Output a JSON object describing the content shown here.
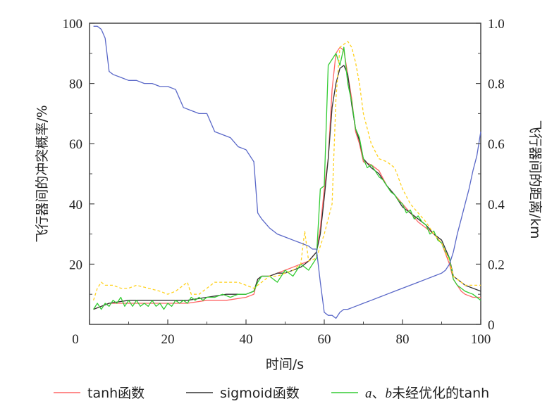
{
  "chart_data": {
    "type": "line",
    "x_ticks": [
      "0",
      "20",
      "40",
      "60",
      "80",
      "100"
    ],
    "y_left_ticks": [
      "20",
      "40",
      "60",
      "80",
      "100"
    ],
    "y_right_ticks": [
      "0",
      "0.2",
      "0.4",
      "0.6",
      "0.8",
      "1.0"
    ],
    "xlabel": "时间/s",
    "ylabel_left": "飞行器间的冲突概率/%",
    "ylabel_right": "飞行器间的距离/km",
    "xlim": [
      0,
      100
    ],
    "ylim_left": [
      0,
      100
    ],
    "ylim_right": [
      0,
      1.0
    ],
    "grid": false,
    "legend_position": "bottom",
    "legend": {
      "tanh_label": "tanh函数",
      "sigmoid_label": "sigmoid函数",
      "ab_italic_a": "a",
      "ab_sep": "、",
      "ab_italic_b": "b",
      "ab_rest": "未经优化的tanh"
    },
    "series": [
      {
        "name": "tanh函数",
        "axis": "left",
        "color": "#ff6666",
        "dash": false,
        "x": [
          1,
          3,
          5,
          10,
          15,
          20,
          25,
          30,
          35,
          40,
          42,
          43,
          44,
          46,
          48,
          50,
          52,
          54,
          56,
          58,
          59,
          60,
          61,
          62,
          63,
          64,
          65,
          66,
          67,
          68,
          69,
          70,
          72,
          74,
          76,
          78,
          80,
          82,
          84,
          86,
          88,
          90,
          92,
          93,
          94,
          95,
          96,
          98,
          100
        ],
        "y": [
          5,
          6,
          7,
          7,
          7,
          7,
          7,
          8,
          8,
          9,
          10,
          15,
          16,
          16,
          17,
          18,
          19,
          20,
          21,
          24,
          32,
          45,
          55,
          78,
          90,
          92,
          91,
          83,
          75,
          64,
          60,
          54,
          53,
          51,
          46,
          43,
          40,
          37,
          34,
          32,
          30,
          27,
          20,
          15,
          13,
          11,
          10,
          9,
          9
        ]
      },
      {
        "name": "sigmoid函数",
        "axis": "left",
        "color": "#333333",
        "dash": false,
        "x": [
          1,
          3,
          5,
          10,
          15,
          20,
          25,
          30,
          35,
          40,
          42,
          43,
          44,
          46,
          48,
          50,
          52,
          54,
          56,
          58,
          59,
          60,
          61,
          62,
          63,
          64,
          65,
          66,
          67,
          68,
          69,
          70,
          72,
          74,
          76,
          78,
          80,
          82,
          84,
          86,
          88,
          90,
          92,
          93,
          94,
          95,
          96,
          98,
          100
        ],
        "y": [
          5,
          6,
          7,
          8,
          8,
          8,
          8,
          9,
          10,
          10,
          11,
          15,
          16,
          16,
          17,
          17,
          18,
          19,
          21,
          24,
          30,
          42,
          55,
          72,
          80,
          85,
          86,
          83,
          73,
          65,
          61,
          55,
          52,
          50,
          46,
          43,
          39,
          37,
          35,
          33,
          30,
          28,
          22,
          16,
          15,
          14,
          13,
          12,
          11
        ]
      },
      {
        "name": "a、b未经优化的tanh",
        "axis": "left",
        "color": "#33cc33",
        "dash": false,
        "x": [
          1,
          2,
          3,
          4,
          5,
          6,
          7,
          8,
          9,
          10,
          11,
          12,
          13,
          14,
          15,
          16,
          17,
          18,
          19,
          20,
          21,
          22,
          23,
          24,
          25,
          26,
          27,
          28,
          29,
          30,
          32,
          34,
          36,
          38,
          40,
          42,
          43,
          44,
          46,
          48,
          50,
          52,
          54,
          56,
          58,
          59,
          60,
          61,
          62,
          63,
          64,
          65,
          66,
          67,
          68,
          69,
          70,
          71,
          72,
          73,
          74,
          75,
          76,
          77,
          78,
          79,
          80,
          81,
          82,
          83,
          84,
          85,
          86,
          87,
          88,
          89,
          90,
          91,
          92,
          93,
          94,
          95,
          96,
          98,
          100
        ],
        "y": [
          5,
          7,
          5,
          7,
          6,
          8,
          7,
          9,
          6,
          8,
          6,
          8,
          6,
          7,
          6,
          8,
          6,
          7,
          5,
          7,
          6,
          8,
          7,
          8,
          7,
          9,
          8,
          9,
          8,
          9,
          9,
          10,
          9,
          10,
          10,
          11,
          14,
          16,
          16,
          14,
          18,
          16,
          20,
          18,
          22,
          45,
          46,
          86,
          88,
          90,
          86,
          92,
          80,
          74,
          65,
          62,
          55,
          52,
          53,
          51,
          49,
          48,
          46,
          44,
          43,
          41,
          40,
          37,
          38,
          35,
          36,
          34,
          33,
          30,
          31,
          28,
          27,
          24,
          22,
          15,
          13,
          12,
          11,
          10,
          8
        ]
      },
      {
        "name": "",
        "axis": "left",
        "color": "#ffd21f",
        "dash": true,
        "x": [
          1,
          2,
          3,
          4,
          5,
          6,
          8,
          10,
          12,
          15,
          18,
          20,
          22,
          24,
          25,
          26,
          28,
          30,
          32,
          35,
          38,
          40,
          42,
          44,
          46,
          48,
          50,
          52,
          54,
          55,
          56,
          58,
          60,
          62,
          63,
          64,
          65,
          66,
          67,
          68,
          69,
          70,
          72,
          74,
          76,
          78,
          80,
          82,
          84,
          86,
          88,
          90,
          92,
          93,
          94,
          95,
          96,
          98,
          100
        ],
        "y": [
          8,
          12,
          14,
          13,
          13,
          13,
          12,
          12,
          13,
          12,
          11,
          10,
          11,
          13,
          14,
          10,
          10,
          12,
          14,
          14,
          14,
          13,
          12,
          14,
          16,
          16,
          17,
          18,
          20,
          31,
          21,
          22,
          30,
          40,
          75,
          92,
          93,
          94,
          92,
          87,
          80,
          70,
          60,
          55,
          54,
          52,
          45,
          40,
          37,
          34,
          30,
          27,
          21,
          16,
          15,
          14,
          13,
          13,
          13
        ]
      },
      {
        "name": "",
        "axis": "right",
        "color": "#5a68c8",
        "dash": false,
        "x": [
          1,
          2,
          3,
          4,
          5,
          6,
          8,
          10,
          12,
          14,
          16,
          18,
          20,
          22,
          24,
          26,
          28,
          30,
          32,
          34,
          36,
          38,
          40,
          42,
          43,
          44,
          46,
          48,
          50,
          52,
          54,
          56,
          57,
          58,
          59,
          60,
          61,
          62,
          63,
          64,
          65,
          66,
          68,
          70,
          72,
          74,
          76,
          78,
          80,
          82,
          84,
          86,
          88,
          90,
          91,
          92,
          93,
          94,
          95,
          96,
          97,
          98,
          99,
          100
        ],
        "y": [
          0.99,
          0.99,
          0.98,
          0.95,
          0.84,
          0.83,
          0.82,
          0.81,
          0.81,
          0.8,
          0.8,
          0.79,
          0.79,
          0.78,
          0.72,
          0.71,
          0.7,
          0.7,
          0.64,
          0.63,
          0.62,
          0.59,
          0.58,
          0.54,
          0.37,
          0.35,
          0.32,
          0.3,
          0.29,
          0.28,
          0.27,
          0.26,
          0.25,
          0.25,
          0.14,
          0.04,
          0.03,
          0.03,
          0.02,
          0.04,
          0.05,
          0.05,
          0.06,
          0.07,
          0.08,
          0.09,
          0.1,
          0.11,
          0.12,
          0.13,
          0.14,
          0.15,
          0.16,
          0.17,
          0.18,
          0.2,
          0.24,
          0.3,
          0.35,
          0.4,
          0.45,
          0.51,
          0.56,
          0.64
        ]
      }
    ]
  }
}
